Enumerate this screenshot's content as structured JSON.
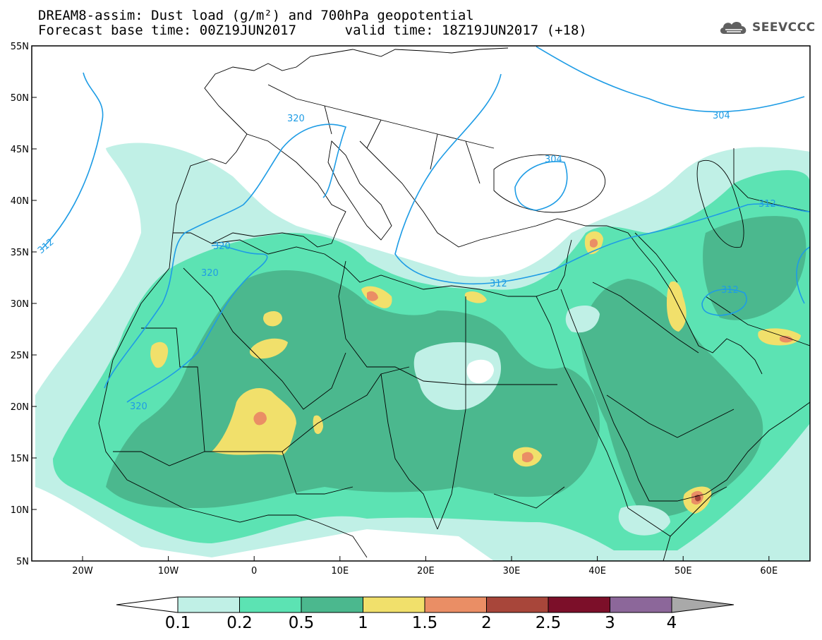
{
  "header": {
    "title_line1": "DREAM8-assim: Dust load (g/m²) and 700hPa geopotential",
    "title_line2": "Forecast base time: 00Z19JUN2017      valid time: 18Z19JUN2017 (+18)",
    "logo_text": "SEEVCCC"
  },
  "axes": {
    "lat_labels": [
      "55N",
      "50N",
      "45N",
      "40N",
      "35N",
      "30N",
      "25N",
      "20N",
      "15N",
      "10N",
      "5N"
    ],
    "lon_labels": [
      "20W",
      "10W",
      "0",
      "10E",
      "20E",
      "30E",
      "40E",
      "50E",
      "60E"
    ]
  },
  "contours": {
    "geopotential_labels": [
      "320",
      "320",
      "320",
      "320",
      "312",
      "312",
      "312",
      "312",
      "304",
      "304"
    ]
  },
  "colorbar": {
    "labels": [
      "0.1",
      "0.2",
      "0.5",
      "1",
      "1.5",
      "2",
      "2.5",
      "3",
      "4"
    ],
    "colors": [
      "#c0f0e6",
      "#5ce3b3",
      "#4bb88e",
      "#f1e06b",
      "#ea8e65",
      "#a8463a",
      "#7c0f29",
      "#8c679a"
    ],
    "under_color": "#ffffff",
    "over_color": "#a9a9a9"
  },
  "colors": {
    "contour_line": "#1e9ce5",
    "border_line": "#000000"
  }
}
